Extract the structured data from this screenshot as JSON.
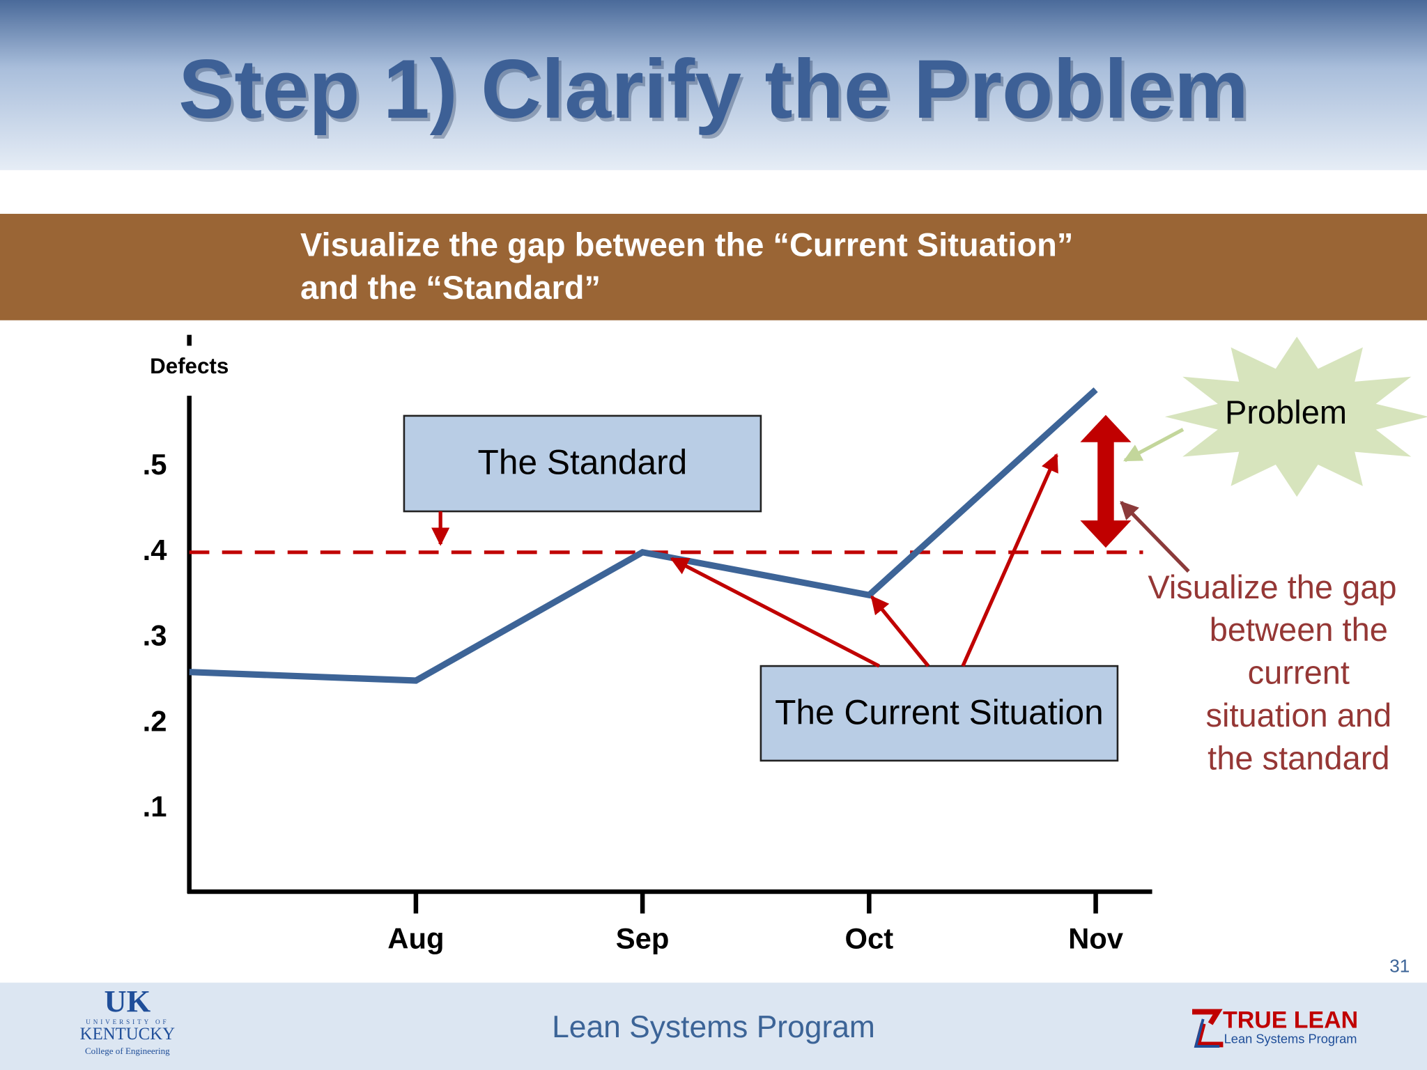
{
  "slide": {
    "title": "Step 1) Clarify the Problem",
    "banner": [
      "Visualize the gap between the “Current Situation”",
      "and the “Standard”"
    ],
    "page_number": "31",
    "footer": "Lean Systems Program",
    "left_logo": [
      "UK",
      "UNIVERSITY OF",
      "KENTUCKY",
      "College of Engineering"
    ],
    "right_logo": [
      "TRUE LEAN",
      "Lean Systems Program"
    ]
  },
  "chart_data": {
    "type": "line",
    "y_label": "Defects",
    "categories": [
      null,
      "Aug",
      "Sep",
      "Oct",
      "Nov"
    ],
    "series": [
      {
        "name": "The Current Situation",
        "color": "#3d6497",
        "values": [
          0.26,
          0.25,
          0.4,
          0.35,
          0.59
        ]
      }
    ],
    "standard": {
      "name": "The Standard",
      "value": 0.4,
      "color": "#c00000"
    },
    "ylim": [
      0,
      0.6
    ],
    "yticks": [
      {
        "value": 0.1,
        "label": ".1"
      },
      {
        "value": 0.2,
        "label": ".2"
      },
      {
        "value": 0.3,
        "label": ".3"
      },
      {
        "value": 0.4,
        "label": ".4"
      },
      {
        "value": 0.5,
        "label": ".5"
      }
    ],
    "annotations": {
      "problem": "Problem",
      "gap": [
        "Visualize the gap",
        "between the",
        "current",
        "situation and",
        "the standard"
      ]
    }
  }
}
